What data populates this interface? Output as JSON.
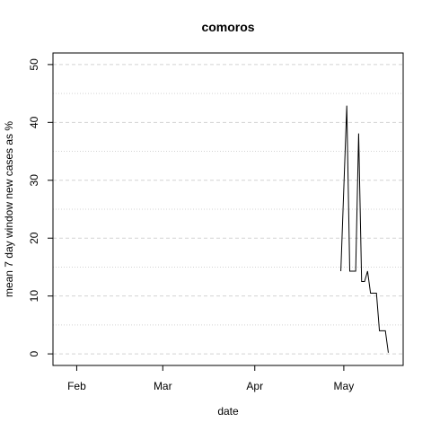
{
  "chart_data": {
    "type": "line",
    "title": "comoros",
    "xlabel": "date",
    "ylabel": "mean  7  day window new cases as %",
    "x_axis_kind": "date",
    "x_tick_labels": [
      "Feb",
      "Mar",
      "Apr",
      "May"
    ],
    "x_tick_dates": [
      "2020-02-01",
      "2020-03-01",
      "2020-04-01",
      "2020-05-01"
    ],
    "xlim": [
      "2020-01-24",
      "2020-05-21"
    ],
    "ylim": [
      -2,
      52
    ],
    "y_ticks": [
      0,
      10,
      20,
      30,
      40,
      50
    ],
    "grid": {
      "horizontal_major": [
        0,
        10,
        20,
        30,
        40,
        50
      ],
      "horizontal_minor": [
        5,
        15,
        25,
        35,
        45
      ],
      "vertical": false
    },
    "line_color": "#000000",
    "grid_color": "#d3d3d3",
    "series": [
      {
        "x": [
          "2020-04-30",
          "2020-05-02",
          "2020-05-03",
          "2020-05-04",
          "2020-05-05",
          "2020-05-06",
          "2020-05-07",
          "2020-05-08",
          "2020-05-09",
          "2020-05-10",
          "2020-05-11",
          "2020-05-12",
          "2020-05-13",
          "2020-05-14",
          "2020-05-15",
          "2020-05-16"
        ],
        "y": [
          14.3,
          42.9,
          14.3,
          14.3,
          14.3,
          38.1,
          12.5,
          12.5,
          14.3,
          10.5,
          10.5,
          10.5,
          4.0,
          4.0,
          4.0,
          0.2
        ]
      }
    ]
  }
}
